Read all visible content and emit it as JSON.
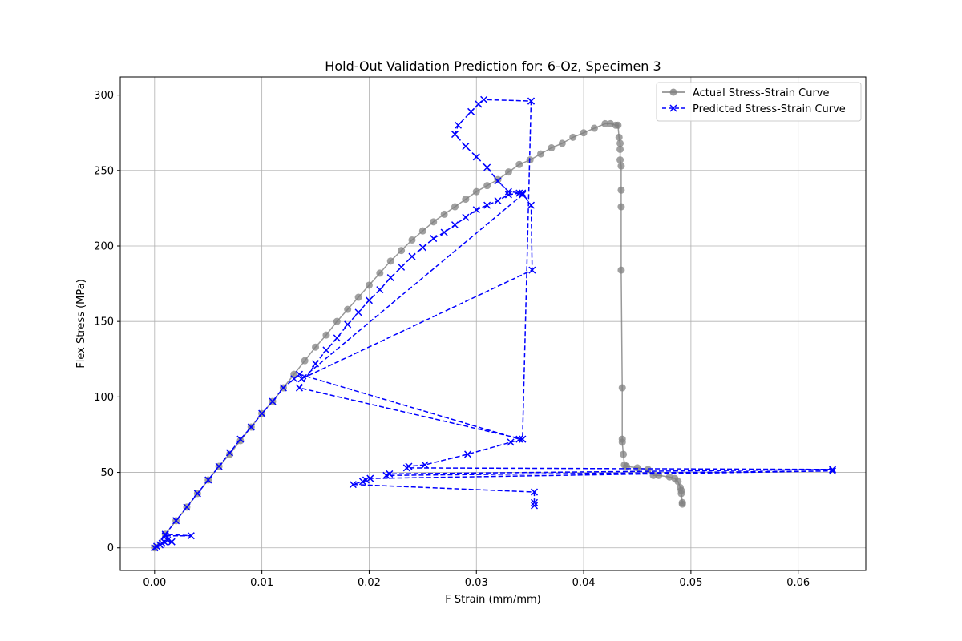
{
  "chart_data": {
    "type": "line",
    "title": "Hold-Out Validation Prediction for: 6-Oz, Specimen 3",
    "xlabel": "F Strain (mm/mm)",
    "ylabel": "Flex Stress (MPa)",
    "xlim": [
      -0.0032,
      0.0663
    ],
    "ylim": [
      -15,
      312
    ],
    "xticks": [
      0.0,
      0.01,
      0.02,
      0.03,
      0.04,
      0.05,
      0.06
    ],
    "xtick_labels": [
      "0.00",
      "0.01",
      "0.02",
      "0.03",
      "0.04",
      "0.05",
      "0.06"
    ],
    "yticks": [
      0,
      50,
      100,
      150,
      200,
      250,
      300
    ],
    "ytick_labels": [
      "0",
      "50",
      "100",
      "150",
      "200",
      "250",
      "300"
    ],
    "grid": true,
    "legend_position": "upper-right",
    "series": [
      {
        "name": "Actual Stress-Strain Curve",
        "color": "#808080",
        "marker": "circle",
        "linestyle": "solid",
        "x": [
          0.0,
          0.001,
          0.002,
          0.003,
          0.004,
          0.005,
          0.006,
          0.007,
          0.008,
          0.009,
          0.01,
          0.011,
          0.012,
          0.013,
          0.014,
          0.015,
          0.016,
          0.017,
          0.018,
          0.019,
          0.02,
          0.021,
          0.022,
          0.023,
          0.024,
          0.025,
          0.026,
          0.027,
          0.028,
          0.029,
          0.03,
          0.031,
          0.032,
          0.033,
          0.034,
          0.035,
          0.036,
          0.037,
          0.038,
          0.039,
          0.04,
          0.041,
          0.042,
          0.0425,
          0.043,
          0.0432,
          0.0433,
          0.0434,
          0.0434,
          0.0434,
          0.0435,
          0.0435,
          0.0435,
          0.0435,
          0.0436,
          0.0436,
          0.0436,
          0.0437,
          0.0438,
          0.044,
          0.045,
          0.046,
          0.0465,
          0.047,
          0.048,
          0.0485,
          0.0488,
          0.049,
          0.0491,
          0.0491,
          0.0492,
          0.0492
        ],
        "y": [
          0,
          9,
          18,
          27,
          36,
          45,
          54,
          62,
          71,
          80,
          89,
          97,
          106,
          115,
          124,
          133,
          141,
          150,
          158,
          166,
          174,
          182,
          190,
          197,
          204,
          210,
          216,
          221,
          226,
          231,
          236,
          240,
          244,
          249,
          254,
          257,
          261,
          265,
          268,
          272,
          275,
          278,
          281,
          281,
          280,
          280,
          272,
          268,
          264,
          257,
          253,
          237,
          226,
          184,
          106,
          72,
          70,
          62,
          55,
          54,
          53,
          52,
          48,
          48,
          47,
          46,
          44,
          40,
          38,
          36,
          30,
          29
        ]
      },
      {
        "name": "Predicted Stress-Strain Curve",
        "color": "#0000ff",
        "marker": "x",
        "linestyle": "dashed",
        "x": [
          0.0,
          0.0002,
          0.0005,
          0.0007,
          0.0009,
          0.0012,
          0.0016,
          0.001,
          0.0034,
          0.001,
          0.002,
          0.003,
          0.004,
          0.005,
          0.006,
          0.007,
          0.008,
          0.009,
          0.01,
          0.011,
          0.012,
          0.013,
          0.0135,
          0.034,
          0.0343,
          0.0135,
          0.015,
          0.016,
          0.017,
          0.018,
          0.019,
          0.02,
          0.021,
          0.022,
          0.023,
          0.024,
          0.025,
          0.026,
          0.027,
          0.028,
          0.029,
          0.03,
          0.031,
          0.032,
          0.033,
          0.034,
          0.0343,
          0.0137,
          0.0352,
          0.0351,
          0.0343,
          0.033,
          0.032,
          0.031,
          0.03,
          0.029,
          0.028,
          0.0283,
          0.0295,
          0.0302,
          0.0307,
          0.0351,
          0.0351,
          0.0343,
          0.0332,
          0.0292,
          0.0252,
          0.0237,
          0.0235,
          0.0632,
          0.0219,
          0.0216,
          0.0632,
          0.0201,
          0.0197,
          0.0194,
          0.0185,
          0.0354,
          0.0354,
          0.0354
        ],
        "y": [
          0,
          1,
          2,
          3,
          4,
          5,
          4,
          8,
          8,
          9,
          18,
          27,
          36,
          45,
          54,
          63,
          72,
          80,
          89,
          97,
          106,
          112,
          115,
          72,
          72,
          106,
          122,
          131,
          139,
          148,
          156,
          164,
          171,
          179,
          186,
          193,
          199,
          205,
          209,
          214,
          219,
          224,
          227,
          230,
          234,
          235,
          234,
          112,
          184,
          227,
          235,
          236,
          243,
          252,
          259,
          266,
          274,
          280,
          289,
          294,
          297,
          296,
          296,
          72,
          70,
          62,
          55,
          54,
          53,
          52,
          49,
          48,
          51,
          46,
          45,
          44,
          42,
          37,
          30,
          28
        ]
      }
    ]
  }
}
